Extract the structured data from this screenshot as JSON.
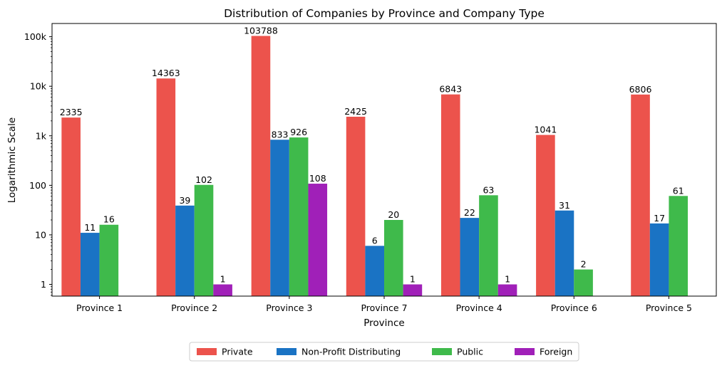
{
  "chart_data": {
    "type": "bar",
    "title": "Distribution of Companies by Province and Company Type",
    "xlabel": "Province",
    "ylabel": "Logarithmic Scale",
    "yscale": "log",
    "ylim": [
      0.58,
      185000
    ],
    "yticks": [
      1,
      10,
      100,
      1000,
      10000,
      100000
    ],
    "ytick_labels": [
      "1",
      "10",
      "100",
      "1k",
      "10k",
      "100k"
    ],
    "categories": [
      "Province 1",
      "Province 2",
      "Province 3",
      "Province 7",
      "Province 4",
      "Province 6",
      "Province 5"
    ],
    "series": [
      {
        "name": "Private",
        "color": "#ec534c",
        "values": [
          2335,
          14363,
          103788,
          2425,
          6843,
          1041,
          6806
        ]
      },
      {
        "name": "Non-Profit Distributing",
        "color": "#1a73c4",
        "values": [
          11,
          39,
          833,
          6,
          22,
          31,
          17
        ]
      },
      {
        "name": "Public",
        "color": "#3fba4b",
        "values": [
          16,
          102,
          926,
          20,
          63,
          2,
          61
        ]
      },
      {
        "name": "Foreign",
        "color": "#a020b8",
        "values": [
          null,
          1,
          108,
          1,
          1,
          null,
          null
        ]
      }
    ],
    "grid": false,
    "legend_position": "bottom-center"
  }
}
